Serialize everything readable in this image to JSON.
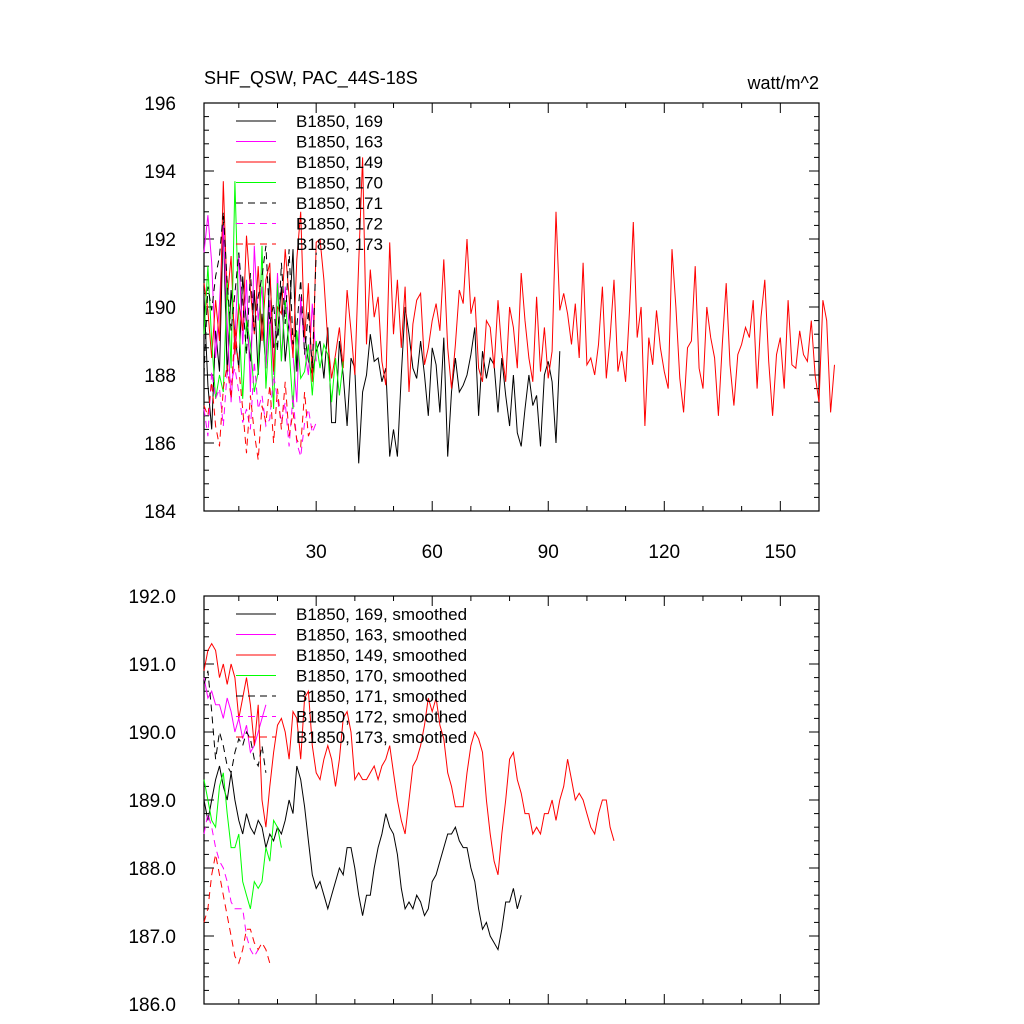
{
  "chart_data": [
    {
      "type": "line",
      "title": "SHF_QSW, PAC_44S-18S",
      "units": "watt/m^2",
      "xlim": [
        1,
        160
      ],
      "ylim": [
        184,
        196
      ],
      "yticks": [
        "184",
        "186",
        "188",
        "190",
        "192",
        "194",
        "196"
      ],
      "xticks": [
        "30",
        "60",
        "90",
        "120",
        "150"
      ],
      "legend_position": "top-left",
      "series": [
        {
          "name": "B1850, 169",
          "color": "#000000",
          "dash": false,
          "values": [
            190.3,
            187.7,
            186.4,
            189.3,
            188.1,
            192.5,
            188.0,
            190.5,
            189.2,
            188.2,
            190.9,
            189.5,
            188.4,
            190.5,
            188.0,
            189.8,
            188.2,
            191.0,
            188.8,
            189.2,
            190.6,
            188.4,
            189.6,
            191.7,
            188.1,
            190.0,
            189.2,
            188.4,
            188.0,
            188.7,
            189.0,
            187.9,
            189.4,
            186.6,
            186.6,
            189.0,
            188.0,
            186.5,
            188.5,
            188.2,
            185.4,
            187.5,
            188.0,
            189.2,
            188.4,
            188.5,
            187.8,
            188.2,
            185.6,
            186.4,
            185.6,
            188.0,
            190.0,
            189.2,
            188.2,
            187.9,
            189.0,
            188.0,
            186.8,
            188.8,
            188.3,
            186.9,
            189.1,
            185.6,
            187.5,
            188.5,
            187.5,
            187.7,
            188.0,
            188.6,
            189.4,
            186.8,
            188.7,
            187.9,
            188.5,
            188.3,
            186.9,
            188.5,
            187.4,
            186.5,
            188.0,
            186.3,
            185.9,
            187.0,
            188.0,
            187.1,
            187.4,
            185.9,
            188.0,
            188.4,
            187.8,
            186.0,
            188.7
          ]
        },
        {
          "name": "B1850, 163",
          "color": "#ff00ff",
          "dash": false,
          "values": [
            191.6,
            192.7,
            191.3,
            188.5,
            190.1,
            192.4,
            189.5,
            187.2,
            189.0,
            191.6,
            188.9,
            190.8,
            187.5,
            191.8,
            189.6,
            190.6,
            188.2,
            190.2,
            188.0,
            191.0,
            188.4,
            190.6,
            189.5,
            188.6,
            187.2,
            190.3,
            188.7,
            188.0,
            190.1,
            188.4
          ]
        },
        {
          "name": "B1850, 149",
          "color": "#ff0000",
          "dash": false,
          "values": [
            190.7,
            189.9,
            188.5,
            190.2,
            189.0,
            193.7,
            190.2,
            191.5,
            188.6,
            190.1,
            189.3,
            192.1,
            190.5,
            189.2,
            191.2,
            189.0,
            190.8,
            191.3,
            188.1,
            190.0,
            189.8,
            191.7,
            190.3,
            188.5,
            191.4,
            192.8,
            189.1,
            190.7,
            187.8,
            191.9,
            192.0,
            190.8,
            189.0,
            187.9,
            188.6,
            189.4,
            188.2,
            190.5,
            189.3,
            188.0,
            191.3,
            194.4,
            188.9,
            191.1,
            189.7,
            190.3,
            188.4,
            187.7,
            191.9,
            189.2,
            190.8,
            188.8,
            190.6,
            187.5,
            189.5,
            190.2,
            190.4,
            188.3,
            188.8,
            189.6,
            190.1,
            189.3,
            191.4,
            188.8,
            187.6,
            188.9,
            190.5,
            190.1,
            192.0,
            189.8,
            190.3,
            188.2,
            187.8,
            189.6,
            189.4,
            188.2,
            190.2,
            188.7,
            187.8,
            190.0,
            189.4,
            188.2,
            191.0,
            189.6,
            188.5,
            187.8,
            190.3,
            188.1,
            189.4,
            187.9,
            188.7,
            192.8,
            189.9,
            190.4,
            189.8,
            188.9,
            190.1,
            188.5,
            191.3,
            188.3,
            188.5,
            188.0,
            188.9,
            190.6,
            187.9,
            189.1,
            190.8,
            188.1,
            188.7,
            187.8,
            189.9,
            192.5,
            189.1,
            190.0,
            186.5,
            189.1,
            188.3,
            189.9,
            188.8,
            188.1,
            187.6,
            191.7,
            190.0,
            187.9,
            186.9,
            188.8,
            189.0,
            191.2,
            188.2,
            187.6,
            190.0,
            189.1,
            188.5,
            186.8,
            188.9,
            190.7,
            188.3,
            187.1,
            188.6,
            188.9,
            189.4,
            189.1,
            190.2,
            187.6,
            189.7,
            190.8,
            188.4,
            186.8,
            188.6,
            189.1,
            187.6,
            190.2,
            188.3,
            188.2,
            189.3,
            188.6,
            188.4,
            189.6,
            188.0,
            187.2,
            190.2,
            189.6,
            186.9,
            188.3
          ]
        },
        {
          "name": "B1850, 170",
          "color": "#00ff00",
          "dash": false,
          "values": [
            189.2,
            191.2,
            189.0,
            187.3,
            188.0,
            187.5,
            190.8,
            188.2,
            193.7,
            189.7,
            187.3,
            189.6,
            188.9,
            187.5,
            188.1,
            191.8,
            187.6,
            189.5,
            187.0,
            190.7,
            188.4,
            190.2,
            188.8,
            187.0,
            189.3,
            187.9,
            188.1,
            188.9,
            187.4,
            189.0,
            188.2,
            188.9,
            188.6,
            187.2,
            188.5,
            187.4,
            188.4
          ]
        },
        {
          "name": "B1850, 171",
          "color": "#000000",
          "dash": true,
          "values": [
            188.0,
            190.6,
            189.9,
            190.9,
            191.5,
            192.8,
            190.7,
            189.3,
            190.4,
            191.6,
            190.2,
            188.6,
            191.0,
            189.3,
            190.3,
            190.9,
            191.8,
            189.5,
            190.1,
            188.7,
            191.3,
            189.5,
            191.7,
            188.9,
            189.4,
            190.8,
            188.6,
            189.9,
            188.2,
            191.6
          ]
        },
        {
          "name": "B1850, 172",
          "color": "#ff00ff",
          "dash": true,
          "values": [
            187.0,
            186.2,
            188.1,
            187.3,
            187.6,
            186.5,
            188.1,
            187.8,
            188.2,
            187.5,
            186.6,
            187.0,
            186.4,
            188.4,
            187.0,
            187.4,
            186.5,
            186.7,
            188.0,
            187.3,
            186.6,
            187.2,
            185.9,
            187.4,
            186.0,
            185.6,
            186.6,
            187.0,
            186.3,
            186.6
          ]
        },
        {
          "name": "B1850, 173",
          "color": "#ff0000",
          "dash": true,
          "values": [
            187.1,
            186.8,
            187.8,
            186.5,
            185.9,
            187.6,
            188.3,
            187.3,
            189.4,
            188.2,
            187.0,
            185.7,
            187.4,
            186.3,
            185.5,
            187.1,
            186.6,
            187.7,
            186.0,
            187.6,
            186.4,
            187.8,
            186.2,
            186.9,
            186.1,
            185.9,
            187.5,
            186.2,
            186.5
          ]
        }
      ]
    },
    {
      "type": "line",
      "title": "",
      "xlim": [
        1,
        160
      ],
      "ylim": [
        186.0,
        192.0
      ],
      "yticks": [
        "186.0",
        "187.0",
        "188.0",
        "189.0",
        "190.0",
        "191.0",
        "192.0"
      ],
      "legend_position": "top-left",
      "series": [
        {
          "name": "B1850, 169, smoothed",
          "color": "#000000",
          "dash": false,
          "values": [
            189.0,
            188.7,
            189.0,
            189.3,
            189.5,
            189.2,
            189.0,
            189.4,
            189.0,
            188.7,
            188.5,
            188.8,
            188.6,
            188.5,
            188.7,
            188.6,
            188.3,
            188.5,
            188.4,
            188.6,
            188.5,
            188.7,
            189.0,
            188.8,
            189.5,
            189.3,
            188.9,
            188.4,
            187.9,
            187.7,
            187.8,
            187.6,
            187.4,
            187.6,
            187.8,
            188.0,
            187.9,
            188.3,
            188.3,
            188.0,
            187.6,
            187.3,
            187.6,
            187.6,
            188.0,
            188.3,
            188.5,
            188.8,
            188.6,
            188.5,
            188.2,
            187.7,
            187.4,
            187.5,
            187.4,
            187.6,
            187.5,
            187.3,
            187.4,
            187.8,
            187.9,
            188.1,
            188.3,
            188.5,
            188.5,
            188.6,
            188.4,
            188.3,
            188.3,
            188.0,
            187.8,
            187.4,
            187.1,
            187.2,
            187.0,
            186.9,
            186.8,
            187.1,
            187.5,
            187.5,
            187.7,
            187.4,
            187.6
          ]
        },
        {
          "name": "B1850, 163, smoothed",
          "color": "#ff00ff",
          "dash": false,
          "values": [
            190.8,
            190.5,
            190.6,
            190.4,
            190.4,
            190.2,
            190.5,
            190.3,
            190.0,
            190.2,
            189.9,
            190.1,
            189.7,
            189.8,
            190.0,
            190.2,
            190.4
          ]
        },
        {
          "name": "B1850, 149, smoothed",
          "color": "#ff0000",
          "dash": false,
          "values": [
            190.9,
            191.2,
            191.3,
            191.2,
            190.8,
            191.0,
            190.7,
            191.0,
            190.8,
            190.2,
            190.5,
            190.8,
            190.4,
            189.8,
            190.4,
            189.0,
            188.6,
            189.2,
            189.7,
            190.1,
            190.2,
            190.0,
            189.6,
            190.3,
            190.2,
            189.6,
            190.5,
            190.6,
            189.8,
            189.4,
            189.3,
            189.6,
            189.8,
            189.6,
            189.2,
            189.6,
            190.2,
            190.3,
            190.0,
            189.3,
            189.4,
            189.3,
            189.3,
            189.4,
            189.5,
            189.3,
            189.5,
            189.6,
            189.8,
            189.4,
            189.0,
            188.7,
            188.5,
            189.0,
            189.5,
            189.6,
            189.8,
            190.1,
            190.5,
            190.3,
            190.5,
            190.1,
            189.9,
            189.4,
            189.2,
            188.9,
            188.9,
            188.9,
            189.4,
            189.8,
            190.0,
            189.9,
            189.7,
            189.0,
            188.5,
            188.1,
            187.9,
            188.5,
            189.0,
            189.6,
            189.7,
            189.3,
            189.1,
            188.8,
            188.8,
            188.5,
            188.6,
            188.5,
            188.8,
            188.8,
            189.0,
            188.7,
            189.0,
            189.2,
            189.6,
            189.3,
            189.0,
            189.1,
            189.0,
            188.8,
            188.6,
            188.5,
            188.8,
            189.0,
            189.0,
            188.6,
            188.4
          ]
        },
        {
          "name": "B1850, 170, smoothed",
          "color": "#00ff00",
          "dash": false,
          "values": [
            189.3,
            189.0,
            188.7,
            188.6,
            189.2,
            189.4,
            188.8,
            188.3,
            188.3,
            188.5,
            187.8,
            187.6,
            187.4,
            187.8,
            187.7,
            187.8,
            188.3,
            188.1,
            188.7,
            188.6,
            188.3
          ]
        },
        {
          "name": "B1850, 171, smoothed",
          "color": "#000000",
          "dash": true,
          "values": [
            190.7,
            190.9,
            190.3,
            189.6,
            190.0,
            189.8,
            189.5,
            189.4,
            189.7,
            189.9,
            189.8,
            190.0,
            189.9,
            189.6,
            189.5,
            189.8,
            189.4
          ]
        },
        {
          "name": "B1850, 172, smoothed",
          "color": "#ff00ff",
          "dash": true,
          "values": [
            188.5,
            188.8,
            188.6,
            188.3,
            188.1,
            188.0,
            187.8,
            187.5,
            187.4,
            187.4,
            187.4,
            187.0,
            186.8,
            186.7,
            186.8
          ]
        },
        {
          "name": "B1850, 173, smoothed",
          "color": "#ff0000",
          "dash": true,
          "values": [
            187.2,
            187.4,
            187.9,
            188.2,
            187.9,
            187.6,
            187.3,
            187.0,
            186.7,
            186.6,
            186.8,
            187.1,
            187.1,
            186.9,
            186.8,
            186.9,
            186.8,
            186.6
          ]
        }
      ]
    }
  ]
}
